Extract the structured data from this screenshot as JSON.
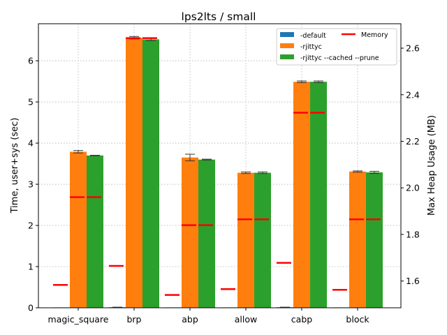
{
  "chart_data": {
    "type": "bar",
    "title": "lps2lts / small",
    "ylabel": "Time, user+sys (sec)",
    "y2label": "Max Heap Usage (MB)",
    "categories": [
      "magic_square",
      "brp",
      "abp",
      "allow",
      "cabp",
      "block"
    ],
    "ylim": [
      0,
      6.9
    ],
    "y2lim": [
      1.485,
      2.705
    ],
    "yticks": [
      "0",
      "1",
      "2",
      "3",
      "4",
      "5",
      "6"
    ],
    "y2ticks": [
      "1.6",
      "1.8",
      "2.0",
      "2.2",
      "2.4",
      "2.6"
    ],
    "grid": true,
    "legend_position": "top-right",
    "series": [
      {
        "name": "-default",
        "color": "#1f77b4",
        "values": [
          0.0,
          0.01,
          0.0,
          0.0,
          0.01,
          0.0
        ],
        "errors": [
          0.0,
          0.005,
          0.0,
          0.0,
          0.005,
          0.0
        ]
      },
      {
        "name": "-rjittyc",
        "color": "#ff7f0e",
        "values": [
          3.79,
          6.56,
          3.65,
          3.28,
          5.49,
          3.31
        ],
        "errors": [
          0.03,
          0.03,
          0.08,
          0.02,
          0.02,
          0.015
        ]
      },
      {
        "name": "-rjittyc --cached --prune",
        "color": "#2ca02c",
        "values": [
          3.7,
          6.52,
          3.6,
          3.28,
          5.49,
          3.29
        ],
        "errors": [
          0.005,
          0.03,
          0.01,
          0.02,
          0.02,
          0.025
        ]
      }
    ],
    "memory": {
      "name": "Memory",
      "color": "#ff0000",
      "values": [
        [
          1.583
        ],
        [
          1.665,
          2.643,
          2.643
        ],
        [
          1.54
        ],
        [
          1.565,
          1.865,
          1.865
        ],
        [
          1.678,
          2.323,
          2.323
        ],
        [
          1.562,
          1.865,
          1.865
        ]
      ],
      "values_magic_square_abp": [
        [
          1.583,
          1.96,
          1.96
        ],
        [
          1.54,
          1.84,
          1.84
        ]
      ]
    }
  }
}
